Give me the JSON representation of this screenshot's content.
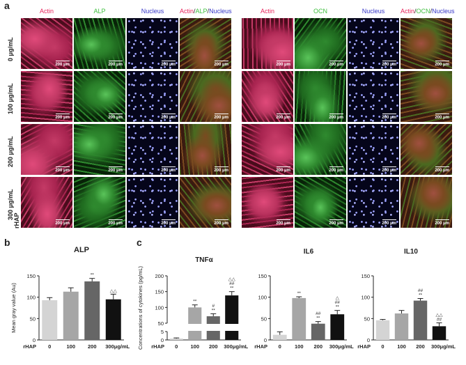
{
  "panel_labels": {
    "a": "a",
    "b": "b",
    "c": "c"
  },
  "panel_a": {
    "left_headers": [
      {
        "parts": [
          {
            "text": "Actin",
            "color": "#e8245c"
          }
        ]
      },
      {
        "parts": [
          {
            "text": "ALP",
            "color": "#3fbf3f"
          }
        ]
      },
      {
        "parts": [
          {
            "text": "Nucleus",
            "color": "#3636c8"
          }
        ]
      },
      {
        "parts": [
          {
            "text": "Actin",
            "color": "#e8245c"
          },
          {
            "text": "/",
            "color": "#222222"
          },
          {
            "text": "ALP",
            "color": "#3fbf3f"
          },
          {
            "text": "/",
            "color": "#222222"
          },
          {
            "text": "Nucleus",
            "color": "#3636c8"
          }
        ]
      }
    ],
    "right_headers": [
      {
        "parts": [
          {
            "text": "Actin",
            "color": "#e8245c"
          }
        ]
      },
      {
        "parts": [
          {
            "text": "OCN",
            "color": "#3fbf3f"
          }
        ]
      },
      {
        "parts": [
          {
            "text": "Nucleus",
            "color": "#3636c8"
          }
        ]
      },
      {
        "parts": [
          {
            "text": "Actin",
            "color": "#e8245c"
          },
          {
            "text": "/",
            "color": "#222222"
          },
          {
            "text": "OCN",
            "color": "#3fbf3f"
          },
          {
            "text": "/",
            "color": "#222222"
          },
          {
            "text": "Nucleus",
            "color": "#3636c8"
          }
        ]
      }
    ],
    "row_labels": [
      "0 μg/mL",
      "100 μg/mL",
      "200 μg/mL",
      "300 μg/mL"
    ],
    "row_prefix": "rHAP",
    "scale_bar": "200 μm"
  },
  "chart_data": [
    {
      "type": "bar",
      "title": "ALP",
      "ylabel": "Mean gray value (Au)",
      "categories": [
        "0",
        "100",
        "200",
        "300μg/mL"
      ],
      "x_prefix": "rHAP",
      "values": [
        93,
        113,
        137,
        95
      ],
      "errors": [
        6,
        9,
        7,
        12
      ],
      "ylim": [
        0,
        150
      ],
      "yticks": [
        0,
        50,
        100,
        150
      ],
      "significance": [
        "",
        "",
        "**",
        "△△"
      ],
      "colors": [
        "#d4d4d4",
        "#a6a6a6",
        "#666666",
        "#111111"
      ]
    },
    {
      "type": "bar",
      "title": "TNFα",
      "ylabel": "Concentrations of cytokines (pg/mL)",
      "categories": [
        "0",
        "100",
        "200",
        "300μg/mL"
      ],
      "x_prefix": "rHAP",
      "values": [
        0.8,
        100,
        72,
        138
      ],
      "errors": [
        0.4,
        8,
        8,
        12
      ],
      "axis_break": {
        "lower": [
          0,
          5
        ],
        "upper": [
          50,
          200
        ]
      },
      "yticks_lower": [
        0,
        5
      ],
      "yticks_upper": [
        50,
        100,
        150,
        200
      ],
      "significance": [
        "",
        "**",
        "#|**",
        "△△|##|**"
      ],
      "colors": [
        "#d4d4d4",
        "#a6a6a6",
        "#666666",
        "#111111"
      ]
    },
    {
      "type": "bar",
      "title": "IL6",
      "categories": [
        "0",
        "100",
        "200",
        "300μg/mL"
      ],
      "x_prefix": "rHAP",
      "values": [
        12,
        98,
        38,
        60
      ],
      "errors": [
        7,
        3,
        5,
        9
      ],
      "ylim": [
        0,
        150
      ],
      "yticks": [
        0,
        50,
        100,
        150
      ],
      "significance": [
        "",
        "**",
        "##|**",
        "△|##|**"
      ],
      "colors": [
        "#d4d4d4",
        "#a6a6a6",
        "#666666",
        "#111111"
      ]
    },
    {
      "type": "bar",
      "title": "IL10",
      "categories": [
        "0",
        "100",
        "200",
        "300μg/mL"
      ],
      "x_prefix": "rHAP",
      "values": [
        46,
        62,
        92,
        32
      ],
      "errors": [
        2,
        7,
        5,
        8
      ],
      "ylim": [
        0,
        150
      ],
      "yticks": [
        0,
        50,
        100,
        150
      ],
      "significance": [
        "",
        "",
        "##|**",
        "△△|##"
      ],
      "colors": [
        "#d4d4d4",
        "#a6a6a6",
        "#666666",
        "#111111"
      ]
    }
  ]
}
